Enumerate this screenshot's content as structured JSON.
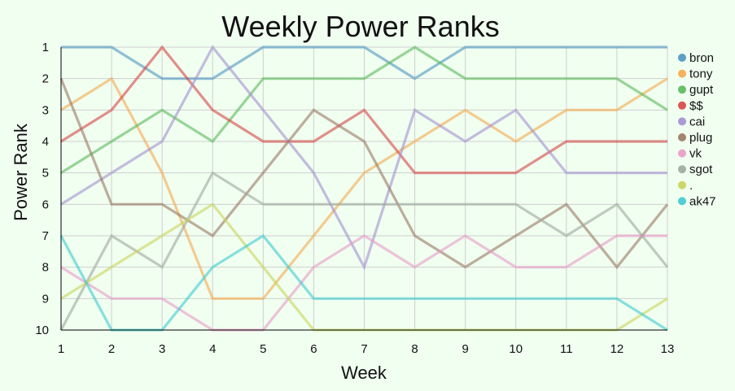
{
  "chart_data": {
    "type": "line",
    "title": "Weekly Power Ranks",
    "xlabel": "Week",
    "ylabel": "Power Rank",
    "x": [
      1,
      2,
      3,
      4,
      5,
      6,
      7,
      8,
      9,
      10,
      11,
      12,
      13
    ],
    "xlim": [
      1,
      13
    ],
    "ylim": [
      1,
      10
    ],
    "y_inverted": true,
    "y_ticks": [
      1,
      2,
      3,
      4,
      5,
      6,
      7,
      8,
      9,
      10
    ],
    "grid": true,
    "legend_position": "right",
    "series": [
      {
        "name": "bron",
        "color": "#4e94c0",
        "values": [
          1,
          1,
          2,
          2,
          1,
          1,
          1,
          2,
          1,
          1,
          1,
          1,
          1
        ]
      },
      {
        "name": "tony",
        "color": "#f5a94f",
        "values": [
          3,
          2,
          5,
          9,
          9,
          7,
          5,
          4,
          3,
          4,
          3,
          3,
          2
        ]
      },
      {
        "name": "gupt",
        "color": "#5bb85b",
        "values": [
          5,
          4,
          3,
          4,
          2,
          2,
          2,
          1,
          2,
          2,
          2,
          2,
          3
        ]
      },
      {
        "name": "$$",
        "color": "#d64545",
        "values": [
          4,
          3,
          1,
          3,
          4,
          4,
          3,
          5,
          5,
          5,
          4,
          4,
          4
        ]
      },
      {
        "name": "cai",
        "color": "#a48fd0",
        "values": [
          6,
          5,
          4,
          1,
          3,
          5,
          8,
          3,
          4,
          3,
          5,
          5,
          5
        ]
      },
      {
        "name": "plug",
        "color": "#9a7763",
        "values": [
          2,
          6,
          6,
          7,
          5,
          3,
          4,
          7,
          8,
          7,
          6,
          8,
          6
        ]
      },
      {
        "name": "vk",
        "color": "#e99ac8",
        "values": [
          8,
          9,
          9,
          10,
          10,
          8,
          7,
          8,
          7,
          8,
          8,
          7,
          7
        ]
      },
      {
        "name": "sgot",
        "color": "#9ea79e",
        "values": [
          10,
          7,
          8,
          5,
          6,
          6,
          6,
          6,
          6,
          6,
          7,
          6,
          8
        ]
      },
      {
        "name": ".",
        "color": "#c9d35a",
        "values": [
          9,
          8,
          7,
          6,
          8,
          10,
          10,
          10,
          10,
          10,
          10,
          10,
          9
        ]
      },
      {
        "name": "ak47",
        "color": "#3ec9d0",
        "values": [
          7,
          10,
          10,
          8,
          7,
          9,
          9,
          9,
          9,
          9,
          9,
          9,
          10
        ]
      }
    ]
  }
}
